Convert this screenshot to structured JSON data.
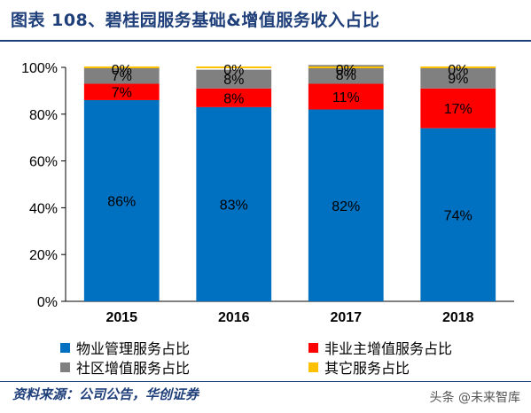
{
  "header": {
    "title": "图表 108、碧桂园服务基础&增值服务收入占比"
  },
  "chart_data": {
    "type": "bar",
    "stacked": true,
    "categories": [
      "2015",
      "2016",
      "2017",
      "2018"
    ],
    "series": [
      {
        "name": "物业管理服务占比",
        "color": "#0070C0",
        "values": [
          86,
          83,
          82,
          74
        ],
        "labels": [
          "86%",
          "83%",
          "82%",
          "74%"
        ]
      },
      {
        "name": "非业主增值服务占比",
        "color": "#FF0000",
        "values": [
          7,
          8,
          11,
          17
        ],
        "labels": [
          "7%",
          "8%",
          "11%",
          "17%"
        ]
      },
      {
        "name": "社区增值服务占比",
        "color": "#808080",
        "values": [
          7,
          8,
          8,
          9
        ],
        "labels": [
          "7%",
          "8%",
          "8%",
          "9%"
        ]
      },
      {
        "name": "其它服务占比",
        "color": "#FFC000",
        "values": [
          0,
          0,
          0,
          0
        ],
        "labels": [
          "0%",
          "0%",
          "0%",
          "0%"
        ]
      }
    ],
    "yticks": [
      "0%",
      "20%",
      "40%",
      "60%",
      "80%",
      "100%"
    ],
    "ylim": [
      0,
      100
    ],
    "grid": false,
    "legend_position": "bottom"
  },
  "footer": {
    "source": "资料来源：公司公告，华创证券"
  },
  "watermark": {
    "text": "头条 @未来智库"
  }
}
